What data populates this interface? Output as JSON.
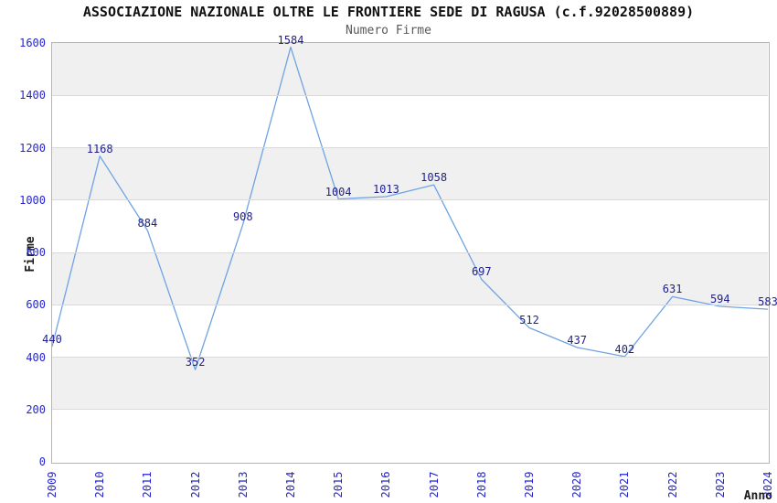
{
  "header": {
    "title": "ASSOCIAZIONE NAZIONALE OLTRE LE FRONTIERE SEDE DI RAGUSA (c.f.92028500889)",
    "subtitle": "Numero Firme"
  },
  "chart_data": {
    "type": "line",
    "title": "ASSOCIAZIONE NAZIONALE OLTRE LE FRONTIERE SEDE DI RAGUSA (c.f.92028500889)",
    "subtitle": "Numero Firme",
    "xlabel": "Anno",
    "ylabel": "Firme",
    "categories": [
      "2009",
      "2010",
      "2011",
      "2012",
      "2013",
      "2014",
      "2015",
      "2016",
      "2017",
      "2018",
      "2019",
      "2020",
      "2021",
      "2022",
      "2023",
      "2024"
    ],
    "values": [
      440,
      1168,
      884,
      352,
      908,
      1584,
      1004,
      1013,
      1058,
      697,
      512,
      437,
      402,
      631,
      594,
      583
    ],
    "point_labels": [
      "440",
      "1168",
      "884",
      "352",
      "908",
      "1584",
      "1004",
      "1013",
      "1058",
      "697",
      "512",
      "437",
      "402",
      "631",
      "594",
      "583"
    ],
    "ylim": [
      0,
      1600
    ],
    "yticks": [
      0,
      200,
      400,
      600,
      800,
      1000,
      1200,
      1400,
      1600
    ],
    "grid": "horizontal-bands-alternating",
    "legend": "none",
    "colors": {
      "line": "#6fa3e4",
      "point_label": "#1f1f8b",
      "tick_label": "#2424d2",
      "band_gray": "#f0f0f0",
      "band_white": "#ffffff",
      "gridline": "#d9d9d9",
      "plot_border": "#b5b5b5",
      "title": "#111111",
      "subtitle": "#595959",
      "axis_label": "#1a1a1a"
    }
  }
}
